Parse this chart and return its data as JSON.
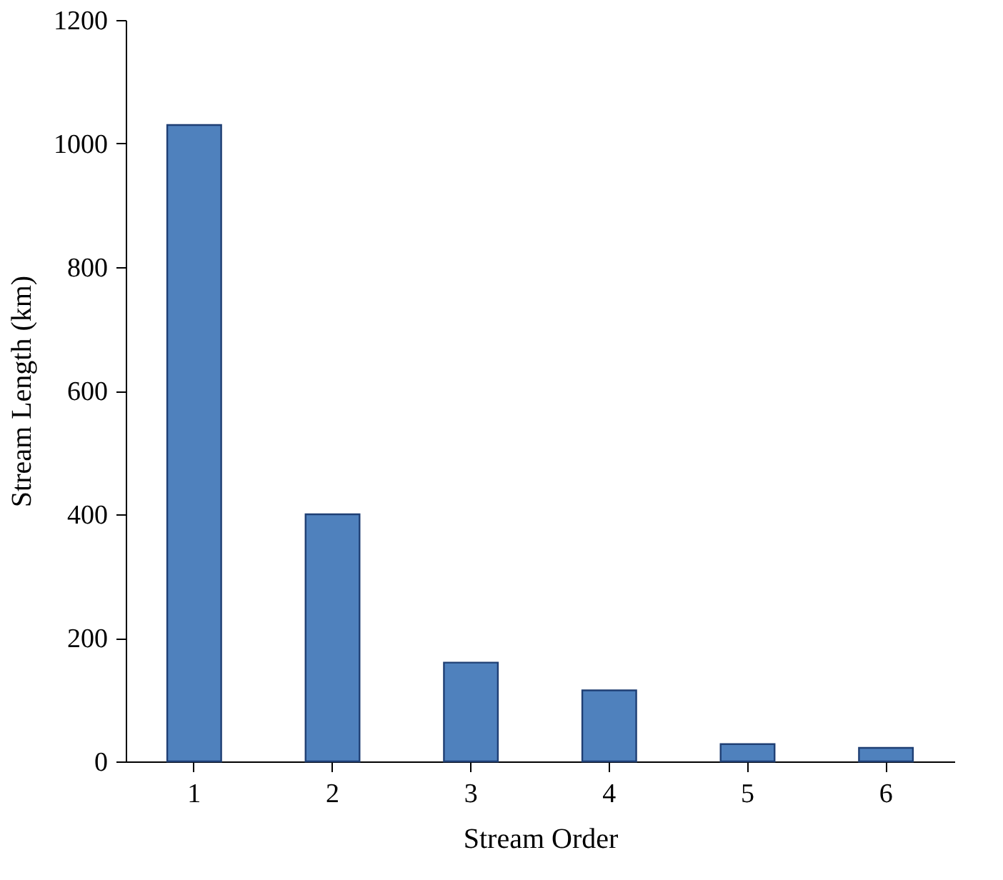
{
  "chart_data": {
    "type": "bar",
    "categories": [
      "1",
      "2",
      "3",
      "4",
      "5",
      "6"
    ],
    "values": [
      1030,
      400,
      160,
      115,
      28,
      22
    ],
    "color": "#4f81bd",
    "xlabel": "Stream Order",
    "ylabel": "Stream Length (km)",
    "ylim": [
      0,
      1200
    ],
    "yticks": [
      0,
      200,
      400,
      600,
      800,
      1000,
      1200
    ]
  }
}
